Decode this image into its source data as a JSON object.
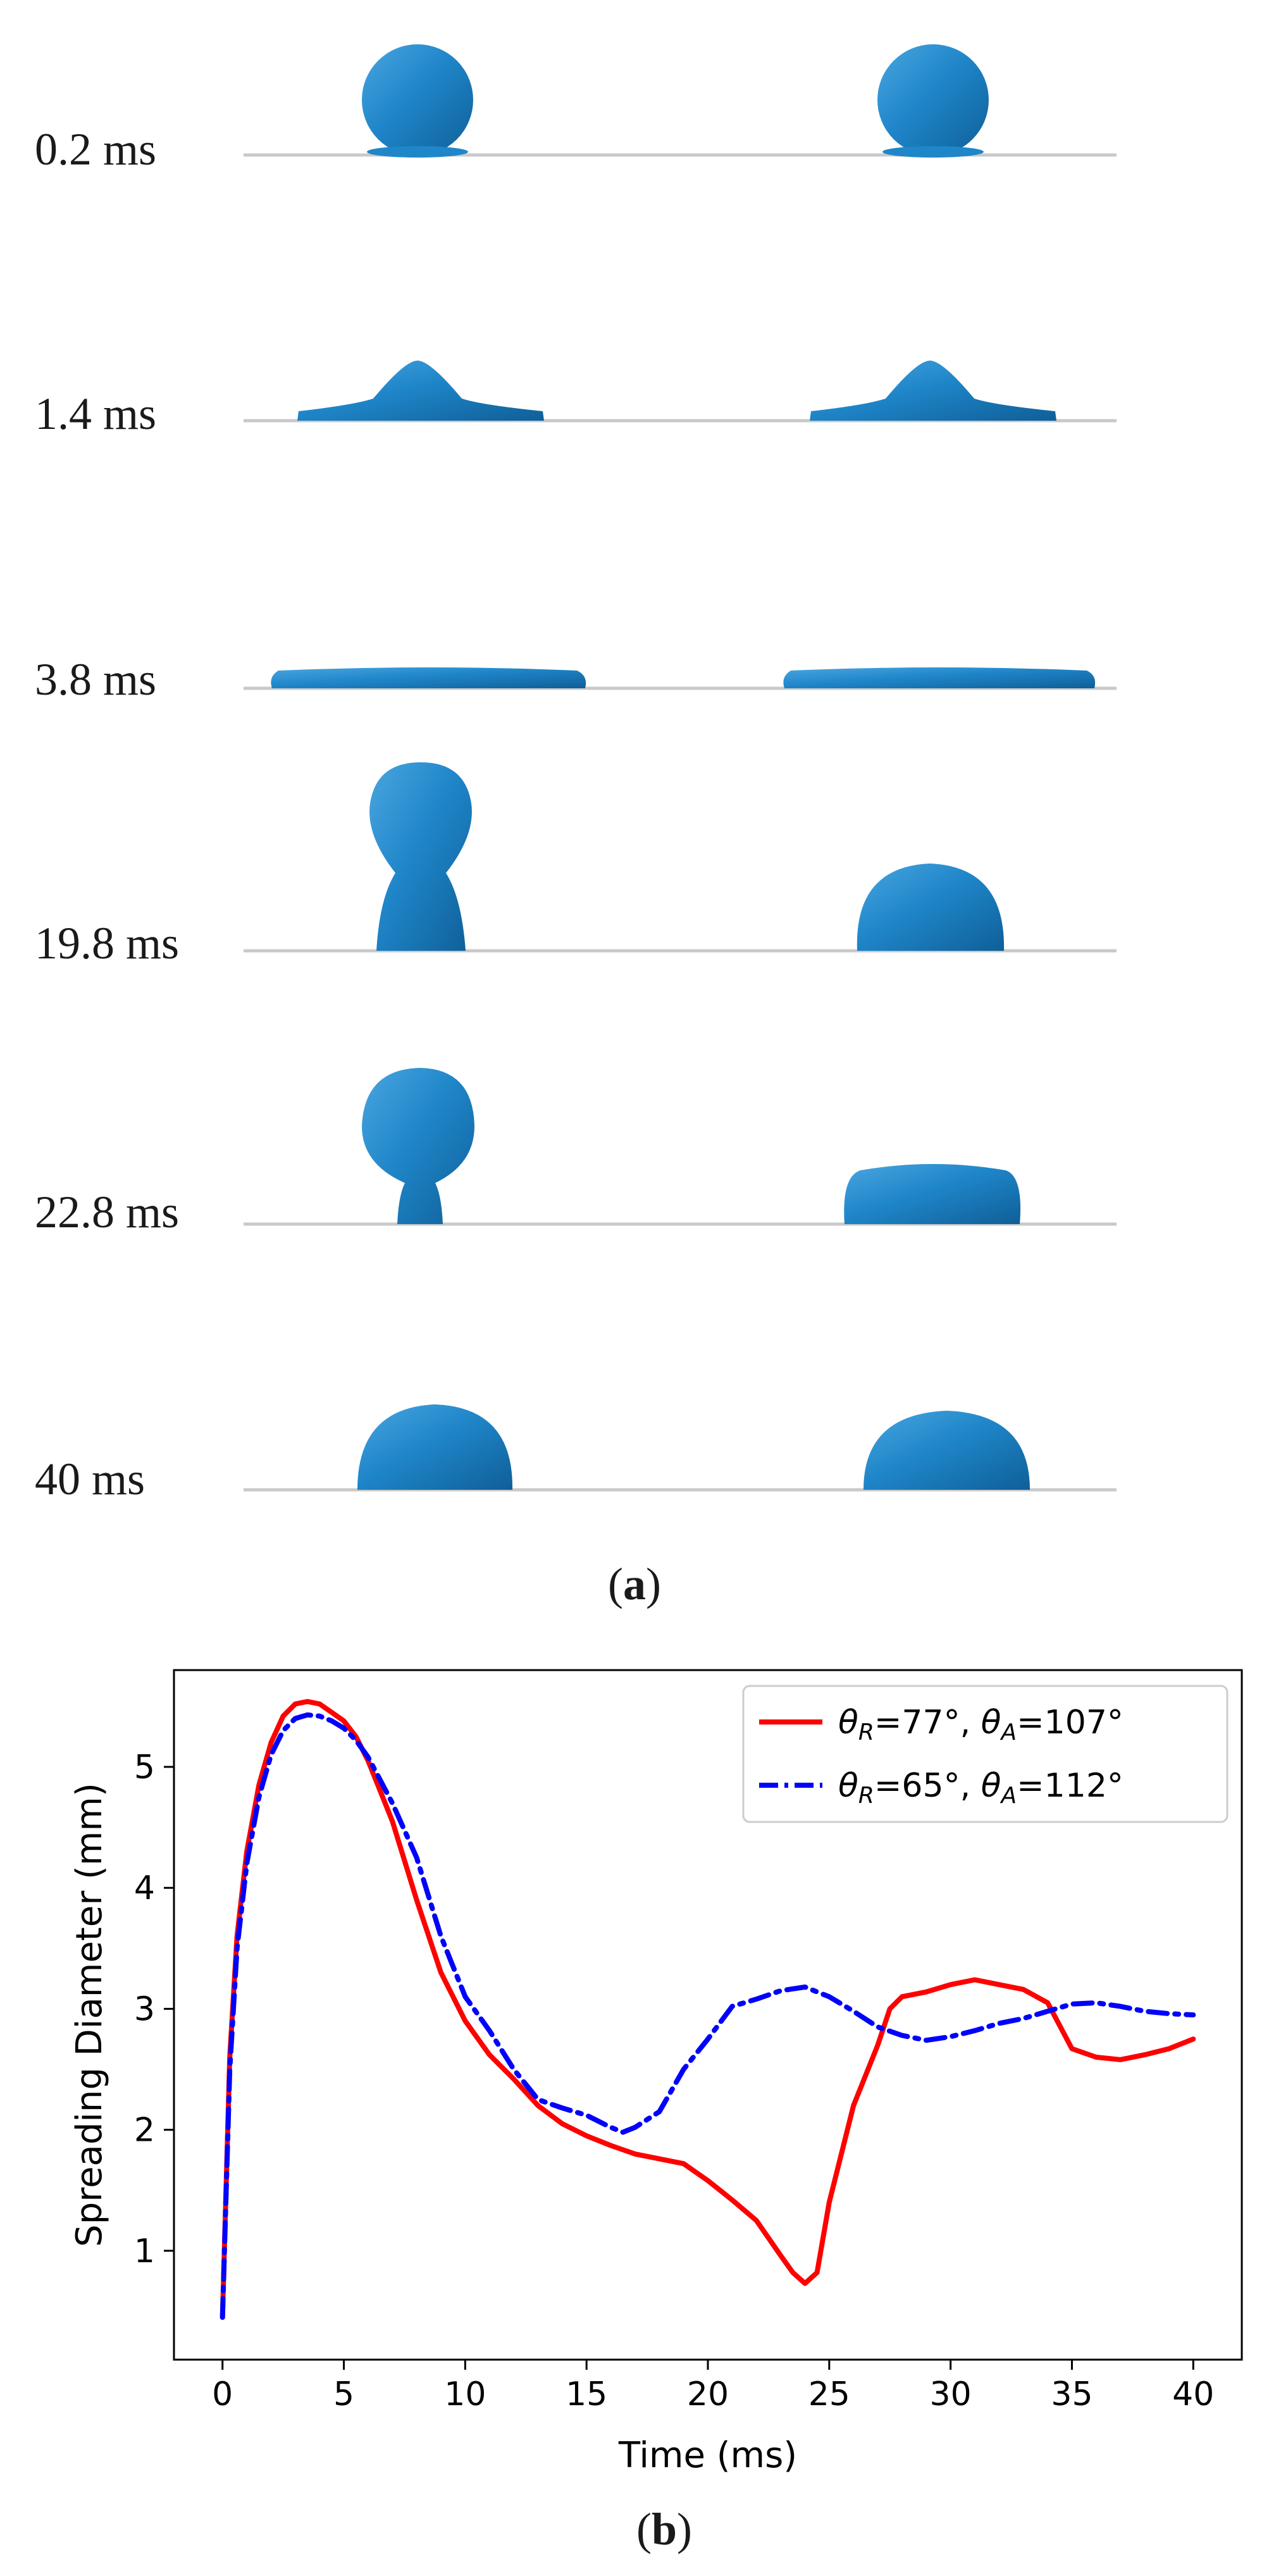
{
  "panel_a": {
    "caption": {
      "open": "(",
      "letter": "a",
      "close": ")"
    },
    "frames": [
      {
        "time_label": "0.2 ms"
      },
      {
        "time_label": "1.4 ms"
      },
      {
        "time_label": "3.8 ms"
      },
      {
        "time_label": "19.8 ms"
      },
      {
        "time_label": "22.8 ms"
      },
      {
        "time_label": "40 ms"
      }
    ],
    "droplet_color": "#1f86c9",
    "droplet_shadow": "#0f5f98",
    "surface_color": "#c9c9c9"
  },
  "panel_b": {
    "caption": {
      "open": "(",
      "letter": "b",
      "close": ")"
    }
  },
  "chart_data": {
    "type": "line",
    "title": "",
    "xlabel": "Time (ms)",
    "ylabel": "Spreading Diameter (mm)",
    "xlim": [
      -2,
      42
    ],
    "ylim": [
      0.1,
      5.8
    ],
    "xticks": [
      0,
      5,
      10,
      15,
      20,
      25,
      30,
      35,
      40
    ],
    "yticks": [
      1,
      2,
      3,
      4,
      5
    ],
    "legend_position": "top-right",
    "series": [
      {
        "name": "θR=77°, θA=107°",
        "legend": {
          "theta1": "θ",
          "sub1": "R",
          "val1": "=77°, ",
          "theta2": "θ",
          "sub2": "A",
          "val2": "=107°"
        },
        "color": "#ff0000",
        "style": "solid",
        "x": [
          0,
          0.3,
          0.6,
          1,
          1.5,
          2,
          2.5,
          3,
          3.5,
          4,
          4.5,
          5,
          5.5,
          6,
          7,
          8,
          9,
          10,
          11,
          12,
          13,
          14,
          15,
          16,
          17,
          18,
          19,
          20,
          21,
          22,
          23,
          23.5,
          24,
          24.5,
          25,
          26,
          27,
          27.5,
          28,
          29,
          30,
          31,
          32,
          33,
          34,
          35,
          36,
          37,
          38,
          39,
          40
        ],
        "y": [
          0.45,
          2.6,
          3.6,
          4.3,
          4.85,
          5.2,
          5.42,
          5.52,
          5.54,
          5.52,
          5.45,
          5.38,
          5.25,
          5.05,
          4.55,
          3.9,
          3.3,
          2.9,
          2.62,
          2.42,
          2.2,
          2.05,
          1.95,
          1.87,
          1.8,
          1.76,
          1.72,
          1.58,
          1.42,
          1.25,
          0.96,
          0.82,
          0.73,
          0.82,
          1.4,
          2.2,
          2.7,
          3.0,
          3.1,
          3.14,
          3.2,
          3.24,
          3.2,
          3.16,
          3.05,
          2.67,
          2.6,
          2.58,
          2.62,
          2.67,
          2.75
        ]
      },
      {
        "name": "θR=65°, θA=112°",
        "legend": {
          "theta1": "θ",
          "sub1": "R",
          "val1": "=65°, ",
          "theta2": "θ",
          "sub2": "A",
          "val2": "=112°"
        },
        "color": "#0000ff",
        "style": "dashdot",
        "x": [
          0,
          0.3,
          0.6,
          1,
          1.5,
          2,
          2.5,
          3,
          3.5,
          4,
          4.5,
          5,
          5.5,
          6,
          7,
          8,
          9,
          10,
          11,
          12,
          13,
          14,
          15,
          16,
          16.5,
          17,
          18,
          19,
          20,
          21,
          22,
          23,
          24,
          25,
          26,
          27,
          28,
          29,
          30,
          31,
          32,
          33,
          34,
          35,
          36,
          37,
          38,
          39,
          40
        ],
        "y": [
          0.45,
          2.5,
          3.5,
          4.2,
          4.75,
          5.1,
          5.3,
          5.4,
          5.43,
          5.42,
          5.38,
          5.32,
          5.22,
          5.08,
          4.7,
          4.25,
          3.6,
          3.1,
          2.82,
          2.5,
          2.25,
          2.18,
          2.12,
          2.02,
          1.98,
          2.02,
          2.15,
          2.5,
          2.75,
          3.02,
          3.08,
          3.15,
          3.18,
          3.1,
          2.98,
          2.85,
          2.78,
          2.74,
          2.77,
          2.82,
          2.88,
          2.92,
          2.98,
          3.04,
          3.05,
          3.02,
          2.98,
          2.96,
          2.95
        ]
      }
    ]
  }
}
